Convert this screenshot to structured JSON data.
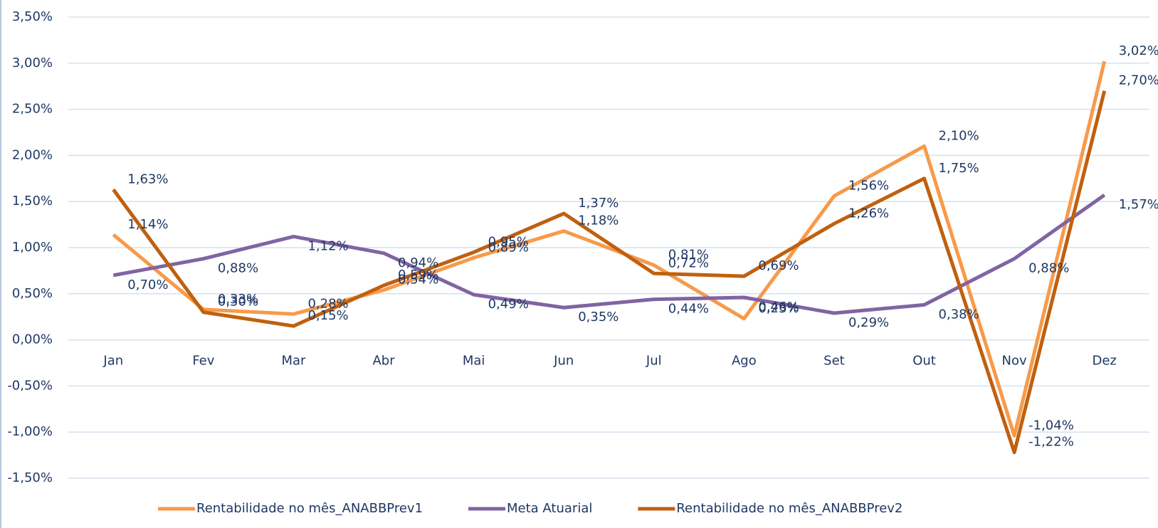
{
  "chart_data": {
    "type": "line",
    "categories": [
      "Jan",
      "Fev",
      "Mar",
      "Abr",
      "Mai",
      "Jun",
      "Jul",
      "Ago",
      "Set",
      "Out",
      "Nov",
      "Dez"
    ],
    "series": [
      {
        "name": "Rentabilidade no mês_ANABBPrev1",
        "color": "#f79a4b",
        "values": [
          1.14,
          0.33,
          0.28,
          0.54,
          0.89,
          1.18,
          0.81,
          0.23,
          1.56,
          2.1,
          -1.04,
          3.02
        ],
        "value_labels": [
          "1,14%",
          "0,33%",
          "0,28%",
          "0,54%",
          "0,89%",
          "1,18%",
          "0,81%",
          "0,23%",
          "1,56%",
          "2,10%",
          "-1,04%",
          "3,02%"
        ]
      },
      {
        "name": "Meta Atuarial",
        "color": "#8064a2",
        "values": [
          0.7,
          0.88,
          1.12,
          0.94,
          0.49,
          0.35,
          0.44,
          0.46,
          0.29,
          0.38,
          0.88,
          1.57
        ],
        "value_labels": [
          "0,70%",
          "0,88%",
          "1,12%",
          "0,94%",
          "0,49%",
          "0,35%",
          "0,44%",
          "0,46%",
          "0,29%",
          "0,38%",
          "0,88%",
          "1,57%"
        ]
      },
      {
        "name": "Rentabilidade no mês_ANABBPrev2",
        "color": "#c0600f",
        "values": [
          1.63,
          0.3,
          0.15,
          0.59,
          0.95,
          1.37,
          0.72,
          0.69,
          1.26,
          1.75,
          -1.22,
          2.7
        ],
        "value_labels": [
          "1,63%",
          "0,30%",
          "0,15%",
          "0,59%",
          "0,95%",
          "1,37%",
          "0,72%",
          "0,69%",
          "1,26%",
          "1,75%",
          "-1,22%",
          "2,70%"
        ]
      }
    ],
    "ylim": [
      -1.5,
      3.5
    ],
    "yticks": [
      {
        "value": -1.5,
        "label": "-1,50%"
      },
      {
        "value": -1.0,
        "label": "-1,00%"
      },
      {
        "value": -0.5,
        "label": "-0,50%"
      },
      {
        "value": 0,
        "label": "0,00%"
      },
      {
        "value": 0.5,
        "label": "0,50%"
      },
      {
        "value": 1.0,
        "label": "1,00%"
      },
      {
        "value": 1.5,
        "label": "1,50%"
      },
      {
        "value": 2.0,
        "label": "2,00%"
      },
      {
        "value": 2.5,
        "label": "2,50%"
      },
      {
        "value": 3.0,
        "label": "3,00%"
      },
      {
        "value": 3.5,
        "label": "3,50%"
      }
    ],
    "grid": true,
    "legend": "bottom"
  }
}
